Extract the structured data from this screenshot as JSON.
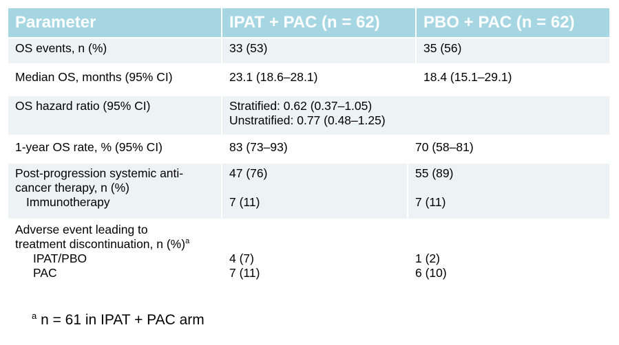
{
  "header": {
    "col1": "Parameter",
    "col2": "IPAT + PAC (n = 62)",
    "col3": "PBO + PAC (n = 62)"
  },
  "rows": {
    "os_events": {
      "label": "OS events, n (%)",
      "ipat": "33 (53)",
      "pbo": "35 (56)"
    },
    "median_os": {
      "label": "Median OS, months (95% CI)",
      "ipat": "23.1 (18.6–28.1)",
      "pbo": "18.4 (15.1–29.1)"
    },
    "hazard_ratio": {
      "label": "OS hazard ratio (95% CI)",
      "stratified": "Stratified: 0.62 (0.37–1.05)",
      "unstratified": "Unstratified: 0.77 (0.48–1.25)"
    },
    "one_year": {
      "label": "1-year OS rate, % (95% CI)",
      "ipat": "83 (73–93)",
      "pbo": "70 (58–81)"
    },
    "post_progression": {
      "label_line1": "Post-progression systemic anti-",
      "label_line2": "cancer therapy, n (%)",
      "ipat": "47 (76)",
      "pbo": "55 (89)",
      "sub_label": "Immunotherapy",
      "sub_ipat": "7 (11)",
      "sub_pbo": "7 (11)"
    },
    "adverse": {
      "label_line1": "Adverse event leading to",
      "label_line2": "treatment discontinuation, n (%)",
      "marker": "a",
      "sub1_label": "IPAT/PBO",
      "sub1_ipat": "4 (7)",
      "sub1_pbo": "1 (2)",
      "sub2_label": "PAC",
      "sub2_ipat": "7 (11)",
      "sub2_pbo": "6 (10)"
    }
  },
  "footnote": {
    "marker": "a",
    "text": " n = 61 in IPAT + PAC arm"
  }
}
